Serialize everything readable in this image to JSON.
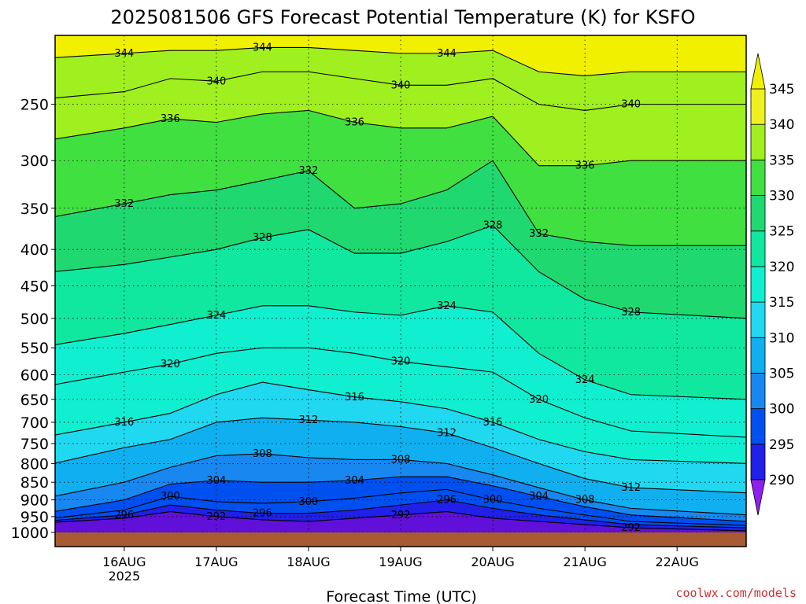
{
  "chart_data": {
    "type": "heatmap",
    "title": "2025081506 GFS Forecast Potential Temperature (K) for KSFO",
    "xlabel": "Forecast Time (UTC)",
    "ylabel": "",
    "credit": "coolwx.com/models",
    "x_ticks": [
      {
        "label": "16AUG",
        "sublabel": "2025",
        "value": "2025-08-16T00"
      },
      {
        "label": "17AUG",
        "sublabel": "",
        "value": "2025-08-17T00"
      },
      {
        "label": "18AUG",
        "sublabel": "",
        "value": "2025-08-18T00"
      },
      {
        "label": "19AUG",
        "sublabel": "",
        "value": "2025-08-19T00"
      },
      {
        "label": "20AUG",
        "sublabel": "",
        "value": "2025-08-20T00"
      },
      {
        "label": "21AUG",
        "sublabel": "",
        "value": "2025-08-21T00"
      },
      {
        "label": "22AUG",
        "sublabel": "",
        "value": "2025-08-22T00"
      }
    ],
    "xlim": [
      "2025-08-15T06",
      "2025-08-22T18"
    ],
    "y_ticks": [
      250,
      300,
      350,
      400,
      450,
      500,
      550,
      600,
      650,
      700,
      750,
      800,
      850,
      900,
      950,
      1000
    ],
    "ylim": [
      200,
      1000
    ],
    "yscale": "log",
    "grid": true,
    "colorbar": {
      "position": "right",
      "levels": [
        290,
        295,
        300,
        305,
        310,
        315,
        320,
        325,
        330,
        335,
        340,
        345
      ],
      "colors": [
        "#6010d8",
        "#2020e8",
        "#0050f0",
        "#1888f0",
        "#10b0f0",
        "#20d8f0",
        "#10f0d0",
        "#10e8a0",
        "#20d870",
        "#40e040",
        "#a0f020",
        "#f0f020"
      ],
      "under_color": "#9020f0",
      "over_color": "#f0f000"
    },
    "surface_color": "#a85a32",
    "isentropes": [
      {
        "theta": 292,
        "p": [
          968,
          955,
          935,
          950,
          960,
          965,
          955,
          945,
          935,
          955,
          965,
          975,
          985,
          995
        ]
      },
      {
        "theta": 296,
        "p": [
          962,
          945,
          915,
          930,
          940,
          940,
          930,
          915,
          900,
          925,
          945,
          960,
          975,
          985
        ]
      },
      {
        "theta": 300,
        "p": [
          955,
          930,
          890,
          905,
          910,
          905,
          895,
          880,
          870,
          900,
          925,
          945,
          965,
          978
        ]
      },
      {
        "theta": 304,
        "p": [
          935,
          900,
          855,
          845,
          850,
          850,
          845,
          835,
          835,
          860,
          890,
          920,
          945,
          965
        ]
      },
      {
        "theta": 308,
        "p": [
          890,
          850,
          810,
          780,
          775,
          785,
          790,
          790,
          800,
          830,
          865,
          900,
          925,
          945
        ]
      },
      {
        "theta": 312,
        "p": [
          800,
          760,
          740,
          700,
          690,
          695,
          700,
          710,
          725,
          760,
          800,
          840,
          865,
          880
        ]
      },
      {
        "theta": 316,
        "p": [
          730,
          700,
          680,
          640,
          615,
          630,
          645,
          655,
          670,
          700,
          740,
          770,
          790,
          800
        ]
      },
      {
        "theta": 320,
        "p": [
          620,
          595,
          580,
          560,
          550,
          550,
          560,
          575,
          585,
          595,
          650,
          690,
          720,
          735
        ]
      },
      {
        "theta": 324,
        "p": [
          545,
          525,
          510,
          495,
          480,
          480,
          490,
          495,
          480,
          490,
          560,
          610,
          640,
          650
        ]
      },
      {
        "theta": 328,
        "p": [
          430,
          420,
          410,
          400,
          385,
          375,
          405,
          405,
          390,
          370,
          430,
          470,
          490,
          500
        ]
      },
      {
        "theta": 332,
        "p": [
          360,
          345,
          335,
          330,
          320,
          310,
          350,
          345,
          330,
          300,
          380,
          390,
          395,
          395
        ]
      },
      {
        "theta": 336,
        "p": [
          280,
          270,
          262,
          265,
          258,
          255,
          265,
          270,
          270,
          260,
          305,
          305,
          300,
          300
        ]
      },
      {
        "theta": 340,
        "p": [
          245,
          240,
          230,
          232,
          225,
          225,
          230,
          235,
          235,
          230,
          250,
          255,
          250,
          250
        ]
      },
      {
        "theta": 344,
        "p": [
          215,
          212,
          210,
          210,
          208,
          208,
          210,
          212,
          212,
          210,
          225,
          228,
          225,
          225
        ]
      }
    ],
    "isentrope_times": [
      6,
      18,
      30,
      42,
      54,
      66,
      78,
      90,
      102,
      114,
      126,
      138,
      150,
      162
    ]
  }
}
